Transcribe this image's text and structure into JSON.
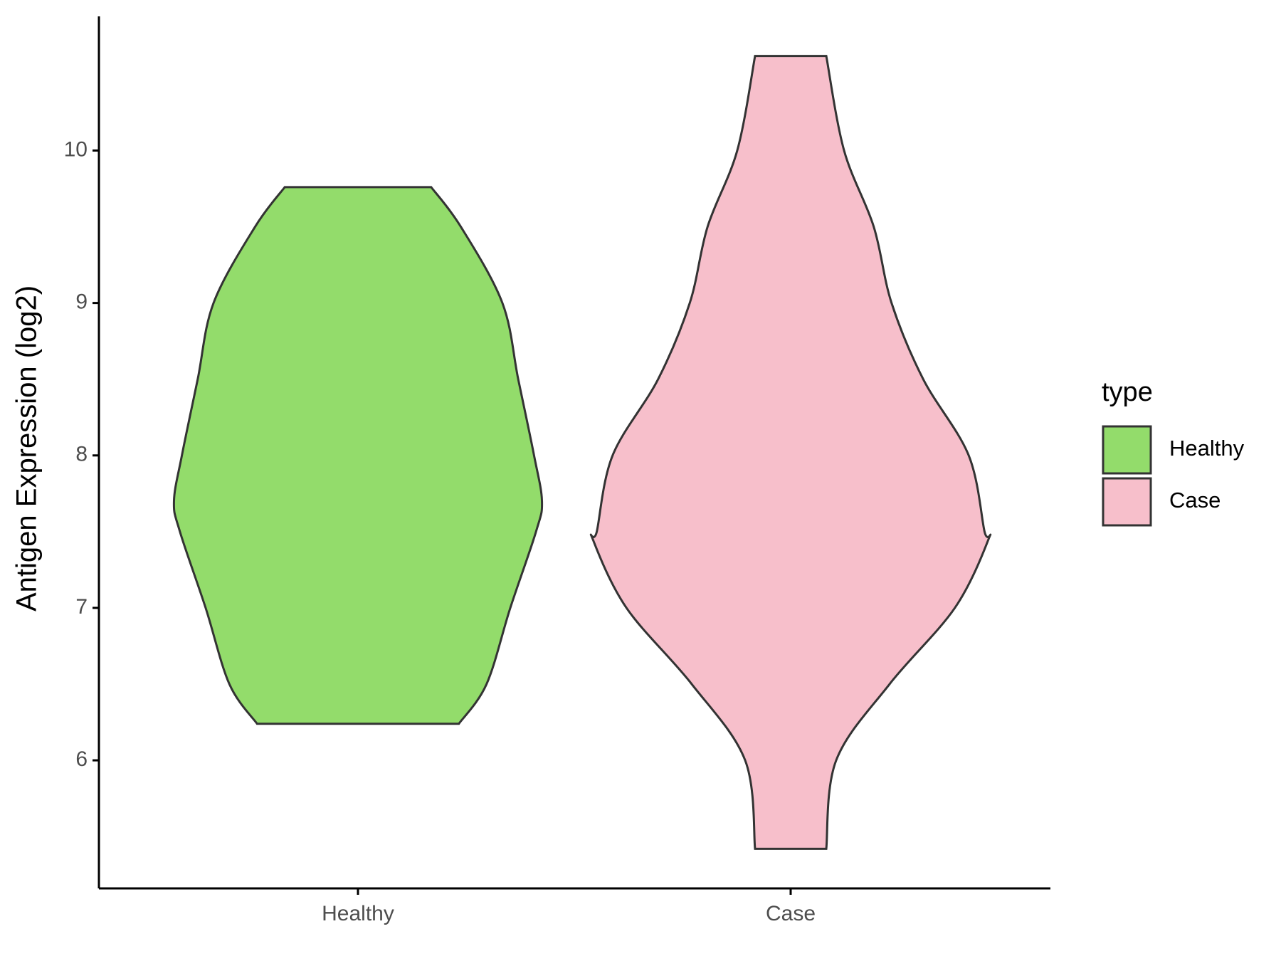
{
  "chart_data": {
    "type": "violin",
    "ylabel": "Antigen Expression (log2)",
    "categories": [
      "Healthy",
      "Case"
    ],
    "ylim": [
      5.16,
      10.88
    ],
    "yticks": [
      6,
      7,
      8,
      9,
      10
    ],
    "legend_title": "type",
    "legend_position": "right",
    "series": [
      {
        "name": "Healthy",
        "color": "#93dc6b",
        "y": [
          9.76,
          9.5,
          9.0,
          8.5,
          8.0,
          7.7,
          7.5,
          7.0,
          6.5,
          6.24
        ],
        "width": [
          0.37,
          0.52,
          0.73,
          0.81,
          0.89,
          0.93,
          0.9,
          0.77,
          0.65,
          0.51
        ]
      },
      {
        "name": "Case",
        "color": "#f7bfcb",
        "y": [
          10.62,
          10.0,
          9.5,
          9.0,
          8.5,
          8.0,
          7.5,
          7.45,
          7.0,
          6.5,
          6.0,
          5.42
        ],
        "width": [
          0.18,
          0.27,
          0.42,
          0.51,
          0.67,
          0.9,
          0.98,
          1.0,
          0.83,
          0.5,
          0.23,
          0.18
        ]
      }
    ]
  }
}
